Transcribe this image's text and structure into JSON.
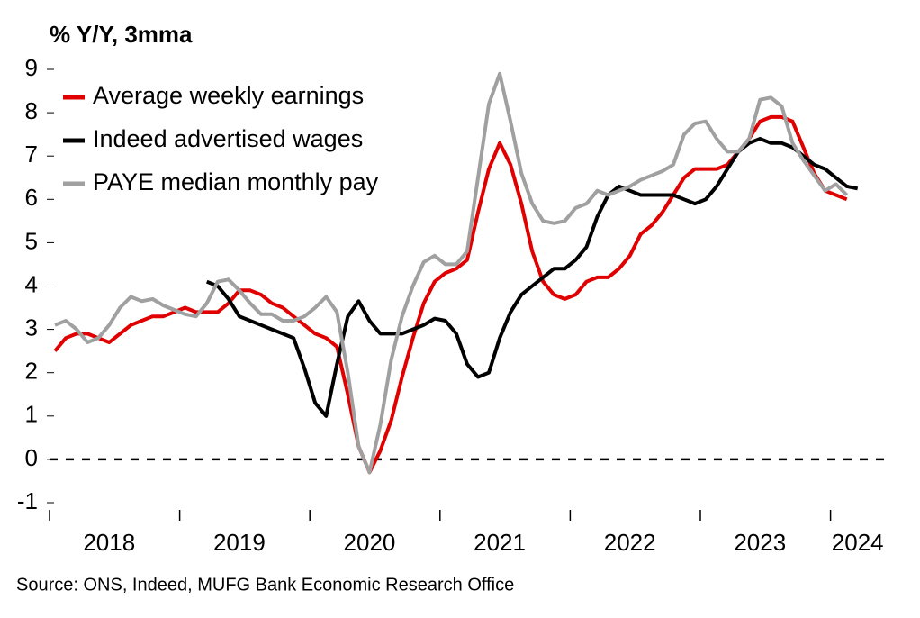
{
  "chart_data": {
    "type": "line",
    "title": "% Y/Y, 3mma",
    "source": "Source: ONS, Indeed, MUFG Bank Economic Research Office",
    "categories": [
      null,
      null,
      null,
      null,
      null,
      "2018",
      null,
      null,
      null,
      null,
      null,
      null,
      null,
      null,
      null,
      null,
      null,
      "2019",
      null,
      null,
      null,
      null,
      null,
      null,
      null,
      null,
      null,
      null,
      null,
      "2020",
      null,
      null,
      null,
      null,
      null,
      null,
      null,
      null,
      null,
      null,
      null,
      "2021",
      null,
      null,
      null,
      null,
      null,
      null,
      null,
      null,
      null,
      null,
      null,
      "2022",
      null,
      null,
      null,
      null,
      null,
      null,
      null,
      null,
      null,
      null,
      null,
      "2023",
      null,
      null,
      null,
      null,
      null,
      null,
      null,
      null,
      "2024",
      null
    ],
    "series": [
      {
        "name": "Average weekly earnings",
        "color": "#e00000",
        "values": [
          2.5,
          2.8,
          2.9,
          2.9,
          2.8,
          2.7,
          2.9,
          3.1,
          3.2,
          3.3,
          3.3,
          3.4,
          3.5,
          3.4,
          3.4,
          3.4,
          3.6,
          3.9,
          3.9,
          3.8,
          3.6,
          3.5,
          3.3,
          3.1,
          2.9,
          2.8,
          2.6,
          1.5,
          0.3,
          -0.3,
          0.2,
          0.9,
          1.9,
          2.8,
          3.6,
          4.1,
          4.3,
          4.4,
          4.6,
          5.7,
          6.7,
          7.3,
          6.8,
          5.9,
          4.8,
          4.1,
          3.8,
          3.7,
          3.8,
          4.1,
          4.2,
          4.2,
          4.4,
          4.7,
          5.2,
          5.4,
          5.7,
          6.1,
          6.5,
          6.7,
          6.7,
          6.7,
          6.8,
          7.1,
          7.4,
          7.8,
          7.9,
          7.9,
          7.8,
          7.2,
          6.6,
          6.2,
          6.1,
          6.0,
          null,
          null
        ]
      },
      {
        "name": "Indeed advertised wages",
        "color": "#000000",
        "values": [
          null,
          null,
          null,
          null,
          null,
          null,
          null,
          null,
          null,
          null,
          null,
          null,
          null,
          null,
          4.1,
          4.0,
          3.7,
          3.3,
          3.2,
          3.1,
          3.0,
          2.9,
          2.8,
          2.1,
          1.3,
          1.0,
          2.2,
          3.3,
          3.65,
          3.2,
          2.9,
          2.9,
          2.9,
          3.0,
          3.1,
          3.25,
          3.2,
          2.9,
          2.2,
          1.9,
          2.0,
          2.8,
          3.4,
          3.8,
          4.0,
          4.2,
          4.4,
          4.4,
          4.6,
          4.9,
          5.6,
          6.1,
          6.3,
          6.2,
          6.1,
          6.1,
          6.1,
          6.1,
          6.0,
          5.9,
          6.0,
          6.3,
          6.7,
          7.1,
          7.3,
          7.4,
          7.3,
          7.3,
          7.2,
          7.0,
          6.8,
          6.7,
          6.5,
          6.3,
          6.25,
          null
        ]
      },
      {
        "name": "PAYE median monthly pay",
        "color": "#a0a0a0",
        "values": [
          3.1,
          3.2,
          3.0,
          2.7,
          2.8,
          3.1,
          3.5,
          3.75,
          3.65,
          3.7,
          3.55,
          3.45,
          3.35,
          3.3,
          3.6,
          4.1,
          4.15,
          3.9,
          3.6,
          3.35,
          3.35,
          3.2,
          3.2,
          3.3,
          3.5,
          3.75,
          3.4,
          2.0,
          0.3,
          -0.3,
          0.8,
          2.3,
          3.3,
          4.0,
          4.55,
          4.7,
          4.5,
          4.5,
          4.8,
          6.5,
          8.2,
          8.9,
          7.8,
          6.6,
          5.9,
          5.5,
          5.45,
          5.5,
          5.8,
          5.9,
          6.2,
          6.1,
          6.2,
          6.3,
          6.45,
          6.55,
          6.65,
          6.8,
          7.5,
          7.75,
          7.8,
          7.4,
          7.1,
          7.1,
          7.4,
          8.3,
          8.35,
          8.15,
          7.3,
          6.9,
          6.55,
          6.2,
          6.35,
          6.1,
          null,
          null
        ]
      }
    ],
    "ylim": [
      -1,
      9
    ],
    "yticks": [
      -1,
      0,
      1,
      2,
      3,
      4,
      5,
      6,
      7,
      8,
      9
    ],
    "reference_line": 0,
    "legend": "upper-left"
  }
}
